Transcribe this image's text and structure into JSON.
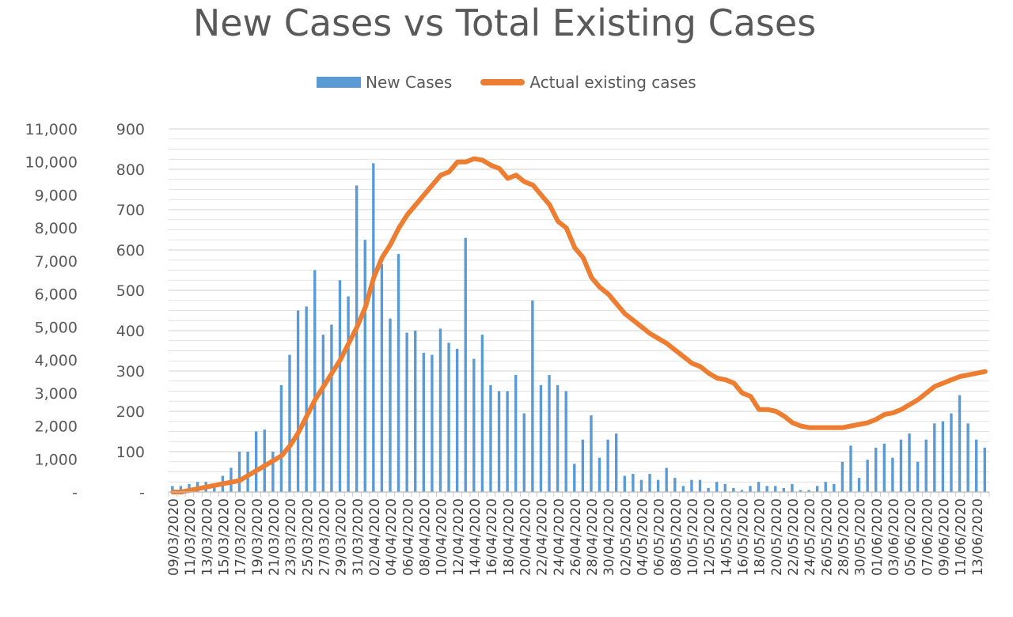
{
  "chart_data": {
    "type": "bar",
    "title": "New Cases vs Total Existing Cases",
    "legend_position": "top",
    "grid": true,
    "colors": {
      "bars": "#5b9bd5",
      "line": "#ed7d31",
      "grid": "#d9d9d9",
      "text": "#595959"
    },
    "y_left": {
      "ylim": [
        0,
        11000
      ],
      "tick_labels": [
        "-",
        "1,000",
        "2,000",
        "3,000",
        "4,000",
        "5,000",
        "6,000",
        "7,000",
        "8,000",
        "9,000",
        "10,000",
        "11,000"
      ]
    },
    "y_right": {
      "ylim": [
        0,
        900
      ],
      "tick_labels": [
        "-",
        "100",
        "200",
        "300",
        "400",
        "500",
        "600",
        "700",
        "800",
        "900"
      ]
    },
    "x_tick_labels": [
      "09/03/2020",
      "11/03/2020",
      "13/03/2020",
      "15/03/2020",
      "17/03/2020",
      "19/03/2020",
      "21/03/2020",
      "23/03/2020",
      "25/03/2020",
      "27/03/2020",
      "29/03/2020",
      "31/03/2020",
      "02/04/2020",
      "04/04/2020",
      "06/04/2020",
      "08/04/2020",
      "10/04/2020",
      "12/04/2020",
      "14/04/2020",
      "16/04/2020",
      "18/04/2020",
      "20/04/2020",
      "22/04/2020",
      "24/04/2020",
      "26/04/2020",
      "28/04/2020",
      "30/04/2020",
      "02/05/2020",
      "04/05/2020",
      "06/05/2020",
      "08/05/2020",
      "10/05/2020",
      "12/05/2020",
      "14/05/2020",
      "16/05/2020",
      "18/05/2020",
      "20/05/2020",
      "22/05/2020",
      "24/05/2020",
      "26/05/2020",
      "28/05/2020",
      "30/05/2020",
      "01/06/2020",
      "03/06/2020",
      "05/06/2020",
      "07/06/2020",
      "09/06/2020",
      "11/06/2020",
      "13/06/2020"
    ],
    "series": [
      {
        "name": "New Cases",
        "axis": "right",
        "type": "bar",
        "values": [
          15,
          15,
          20,
          25,
          25,
          20,
          40,
          60,
          100,
          100,
          150,
          155,
          100,
          265,
          340,
          450,
          460,
          550,
          390,
          415,
          525,
          485,
          760,
          625,
          815,
          565,
          430,
          590,
          395,
          400,
          345,
          340,
          405,
          370,
          355,
          630,
          330,
          390,
          265,
          250,
          250,
          290,
          195,
          475,
          265,
          290,
          265,
          250,
          70,
          130,
          190,
          85,
          130,
          145,
          40,
          45,
          30,
          45,
          30,
          60,
          35,
          15,
          30,
          30,
          10,
          25,
          20,
          10,
          5,
          15,
          25,
          15,
          15,
          10,
          20,
          5,
          5,
          15,
          25,
          20,
          75,
          115,
          35,
          80,
          110,
          120,
          85,
          130,
          145,
          75,
          130,
          170,
          175,
          195,
          240,
          170,
          130,
          110
        ]
      },
      {
        "name": "Actual existing cases",
        "axis": "left",
        "type": "line",
        "values": [
          0,
          0,
          50,
          100,
          150,
          200,
          250,
          300,
          350,
          500,
          650,
          800,
          950,
          1100,
          1400,
          1800,
          2300,
          2800,
          3200,
          3600,
          4000,
          4500,
          5000,
          5600,
          6500,
          7100,
          7500,
          8000,
          8400,
          8700,
          9000,
          9300,
          9600,
          9700,
          10000,
          10000,
          10100,
          10050,
          9900,
          9800,
          9500,
          9600,
          9400,
          9300,
          9000,
          8700,
          8200,
          8000,
          7400,
          7100,
          6500,
          6200,
          6000,
          5700,
          5400,
          5200,
          5000,
          4800,
          4650,
          4500,
          4300,
          4100,
          3900,
          3800,
          3600,
          3450,
          3400,
          3300,
          3000,
          2900,
          2500,
          2500,
          2450,
          2300,
          2100,
          2000,
          1950,
          1950,
          1950,
          1950,
          1950,
          2000,
          2050,
          2100,
          2200,
          2350,
          2400,
          2500,
          2650,
          2800,
          3000,
          3200,
          3300,
          3400,
          3500,
          3550,
          3600,
          3650
        ]
      }
    ]
  }
}
